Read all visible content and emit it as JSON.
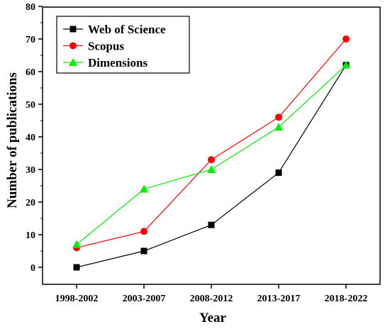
{
  "chart_data": {
    "type": "line",
    "categories": [
      "1998-2002",
      "2003-2007",
      "2008-2012",
      "2013-2017",
      "2018-2022"
    ],
    "series": [
      {
        "name": "Web of Science",
        "values": [
          0,
          5,
          13,
          29,
          62
        ],
        "color": "#000000",
        "marker": "square"
      },
      {
        "name": "Scopus",
        "values": [
          6,
          11,
          33,
          46,
          70
        ],
        "color": "#ff0000",
        "marker": "circle"
      },
      {
        "name": "Dimensions",
        "values": [
          7,
          24,
          30,
          43,
          62
        ],
        "color": "#00ee00",
        "marker": "triangle"
      }
    ],
    "xlabel": "Year",
    "ylabel": "Number of publications",
    "ylim": [
      0,
      80
    ],
    "yticks": [
      0,
      10,
      20,
      30,
      40,
      50,
      60,
      70,
      80
    ],
    "grid": false,
    "legend_position": "top-left"
  }
}
